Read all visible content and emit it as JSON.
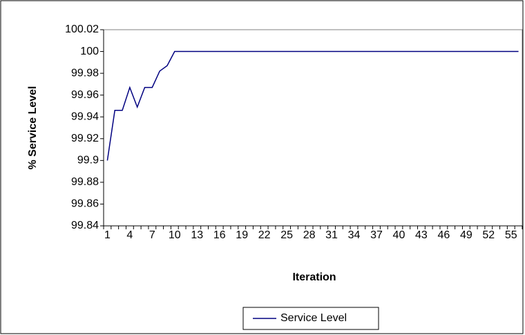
{
  "chart_data": {
    "type": "line",
    "x_label": "Iteration",
    "y_label": "% Service Level",
    "categories": [
      1,
      null,
      null,
      4,
      null,
      null,
      7,
      null,
      null,
      10,
      null,
      null,
      13,
      null,
      null,
      16,
      null,
      null,
      19,
      null,
      null,
      22,
      null,
      null,
      25,
      null,
      null,
      28,
      null,
      null,
      31,
      null,
      null,
      34,
      null,
      null,
      37,
      null,
      null,
      40,
      null,
      null,
      43,
      null,
      null,
      46,
      null,
      null,
      49,
      null,
      null,
      52,
      null,
      null,
      55,
      null
    ],
    "series": [
      {
        "name": "Service Level",
        "color": "#000080",
        "values": [
          99.9,
          99.946,
          99.946,
          99.967,
          99.949,
          99.967,
          99.967,
          99.982,
          99.987,
          100,
          100,
          100,
          100,
          100,
          100,
          100,
          100,
          100,
          100,
          100,
          100,
          100,
          100,
          100,
          100,
          100,
          100,
          100,
          100,
          100,
          100,
          100,
          100,
          100,
          100,
          100,
          100,
          100,
          100,
          100,
          100,
          100,
          100,
          100,
          100,
          100,
          100,
          100,
          100,
          100,
          100,
          100,
          100,
          100,
          100,
          100
        ]
      }
    ],
    "ylim": [
      99.84,
      100.02
    ],
    "yticks": [
      99.84,
      99.86,
      99.88,
      99.9,
      99.92,
      99.94,
      99.96,
      99.98,
      100,
      100.02
    ],
    "grid": false,
    "legend": "bottom"
  }
}
